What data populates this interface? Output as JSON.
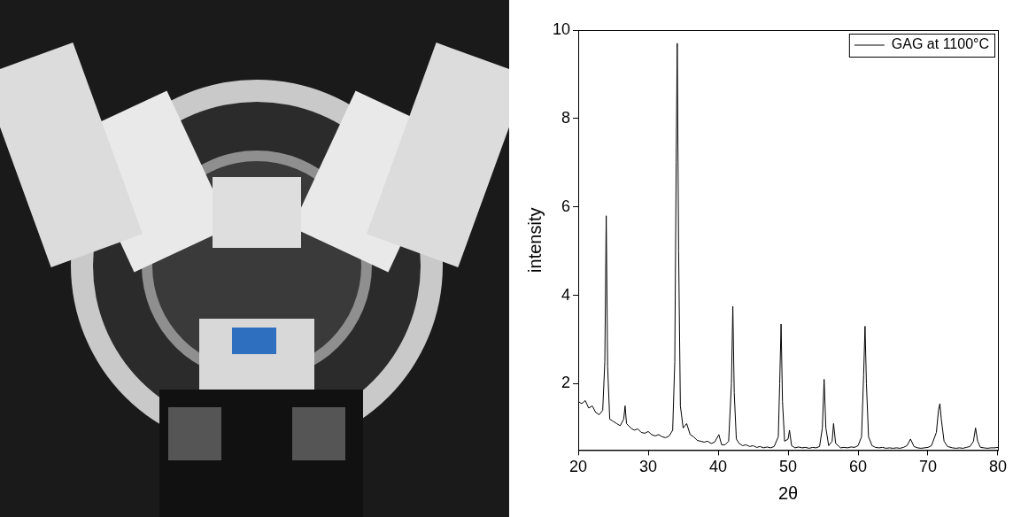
{
  "chart_data": {
    "type": "line",
    "x_label": "2θ",
    "y_label": "intensity",
    "xlim": [
      20,
      80
    ],
    "xticks": [
      20,
      30,
      40,
      50,
      60,
      70,
      80
    ],
    "ylim": [
      0.5,
      10
    ],
    "yticks": [
      2,
      4,
      6,
      8,
      10
    ],
    "grid": false,
    "legend": "upper right",
    "series": [
      {
        "name": "GAG at 1100°C",
        "color": "#000000",
        "x": [
          20,
          20.5,
          21,
          21.5,
          22,
          22.5,
          23,
          23.5,
          23.8,
          24.0,
          24.2,
          24.5,
          25,
          25.5,
          26,
          26.5,
          26.7,
          26.9,
          27.5,
          28,
          28.5,
          29,
          29.5,
          30,
          30.5,
          31,
          31.5,
          32,
          32.5,
          33,
          33.5,
          33.8,
          34.0,
          34.15,
          34.35,
          34.6,
          35,
          35.5,
          36,
          36.5,
          37,
          37.5,
          38,
          38.5,
          39,
          39.5,
          40.1,
          40.5,
          41,
          41.5,
          41.9,
          42.1,
          42.3,
          42.6,
          43,
          43.5,
          44,
          44.5,
          45,
          45.5,
          46,
          46.5,
          47,
          47.5,
          48,
          48.6,
          48.8,
          49.0,
          49.2,
          49.5,
          50.0,
          50.2,
          50.5,
          51,
          51.5,
          52,
          52.5,
          53,
          53.5,
          54,
          54.5,
          54.9,
          55.15,
          55.4,
          55.8,
          56.3,
          56.5,
          56.8,
          57.5,
          58,
          58.5,
          59,
          59.5,
          60,
          60.5,
          60.8,
          61.0,
          61.2,
          61.5,
          62,
          62.5,
          63,
          63.5,
          64,
          64.5,
          65,
          65.5,
          66,
          66.5,
          67,
          67.5,
          68,
          68.5,
          69,
          69.5,
          70,
          70.5,
          71.2,
          71.5,
          71.7,
          71.9,
          72.3,
          72.8,
          73.5,
          74,
          74.5,
          75,
          75.5,
          76,
          76.5,
          76.8,
          77.1,
          77.5,
          78,
          78.5,
          79,
          79.5,
          80
        ],
        "values": [
          1.6,
          1.55,
          1.62,
          1.45,
          1.5,
          1.35,
          1.3,
          1.4,
          2.5,
          5.8,
          2.4,
          1.2,
          1.15,
          1.1,
          1.05,
          1.2,
          1.5,
          1.1,
          1.0,
          0.95,
          0.98,
          0.9,
          0.88,
          0.92,
          0.85,
          0.82,
          0.85,
          0.8,
          0.78,
          0.82,
          0.95,
          2.5,
          7.0,
          9.7,
          5.0,
          1.5,
          1.0,
          1.1,
          0.85,
          0.8,
          0.72,
          0.7,
          0.68,
          0.7,
          0.65,
          0.68,
          0.85,
          0.62,
          0.62,
          0.7,
          2.0,
          3.75,
          1.8,
          0.75,
          0.65,
          0.6,
          0.62,
          0.58,
          0.6,
          0.56,
          0.58,
          0.55,
          0.57,
          0.55,
          0.58,
          0.8,
          2.0,
          3.35,
          1.6,
          0.7,
          0.75,
          0.95,
          0.6,
          0.55,
          0.57,
          0.55,
          0.56,
          0.54,
          0.56,
          0.55,
          0.58,
          1.0,
          2.1,
          1.0,
          0.6,
          0.7,
          1.1,
          0.65,
          0.55,
          0.56,
          0.55,
          0.57,
          0.56,
          0.6,
          0.8,
          2.2,
          3.3,
          2.0,
          0.8,
          0.6,
          0.56,
          0.55,
          0.56,
          0.54,
          0.55,
          0.54,
          0.55,
          0.54,
          0.56,
          0.6,
          0.75,
          0.58,
          0.55,
          0.54,
          0.55,
          0.56,
          0.6,
          0.9,
          1.4,
          1.55,
          1.2,
          0.7,
          0.58,
          0.55,
          0.54,
          0.55,
          0.54,
          0.56,
          0.58,
          0.7,
          1.0,
          0.7,
          0.56,
          0.55,
          0.54,
          0.55,
          0.55,
          0.56
        ]
      }
    ]
  }
}
